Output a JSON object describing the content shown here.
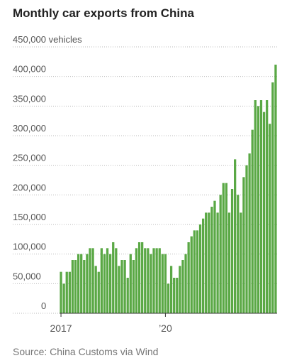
{
  "chart_data": {
    "type": "bar",
    "title": "Monthly car exports from China",
    "source": "Source: China Customs via Wind",
    "unit_label": "450,000 vehicles",
    "color": "#5aa845",
    "categories": [
      "2017",
      null,
      null,
      null,
      null,
      null,
      null,
      null,
      null,
      null,
      null,
      null,
      null,
      null,
      null,
      null,
      null,
      null,
      null,
      null,
      null,
      null,
      null,
      null,
      null,
      null,
      null,
      null,
      null,
      null,
      null,
      null,
      null,
      null,
      null,
      null,
      "’20",
      null,
      null,
      null,
      null,
      null,
      null,
      null,
      null,
      null,
      null,
      null,
      null,
      null,
      null,
      null,
      null,
      null,
      null,
      null,
      null,
      null,
      null,
      null,
      null,
      null,
      null,
      null,
      null,
      null,
      null,
      null,
      null,
      null,
      null,
      null,
      null,
      null,
      null
    ],
    "values": [
      70000,
      50000,
      70000,
      70000,
      90000,
      90000,
      100000,
      100000,
      90000,
      100000,
      110000,
      110000,
      80000,
      70000,
      110000,
      100000,
      110000,
      100000,
      120000,
      110000,
      80000,
      90000,
      90000,
      60000,
      100000,
      90000,
      110000,
      120000,
      120000,
      110000,
      110000,
      100000,
      110000,
      110000,
      110000,
      100000,
      100000,
      50000,
      80000,
      60000,
      60000,
      80000,
      90000,
      100000,
      120000,
      130000,
      140000,
      140000,
      150000,
      160000,
      170000,
      170000,
      180000,
      190000,
      170000,
      200000,
      220000,
      220000,
      170000,
      210000,
      260000,
      200000,
      170000,
      230000,
      250000,
      270000,
      310000,
      360000,
      350000,
      360000,
      340000,
      360000,
      320000,
      390000,
      420000
    ],
    "ylim": [
      0,
      450000
    ],
    "yticks": [
      0,
      {
        "value": 50000,
        "label": "50,000"
      },
      {
        "value": 100000,
        "label": "100,000"
      },
      {
        "value": 150000,
        "label": "150,000"
      },
      {
        "value": 200000,
        "label": "200,000"
      },
      {
        "value": 250000,
        "label": "250,000"
      },
      {
        "value": 300000,
        "label": "300,000"
      },
      {
        "value": 350000,
        "label": "350,000"
      },
      {
        "value": 400000,
        "label": "400,000"
      },
      {
        "value": 450000,
        "label": "450,000 vehicles"
      }
    ],
    "grid": true
  }
}
